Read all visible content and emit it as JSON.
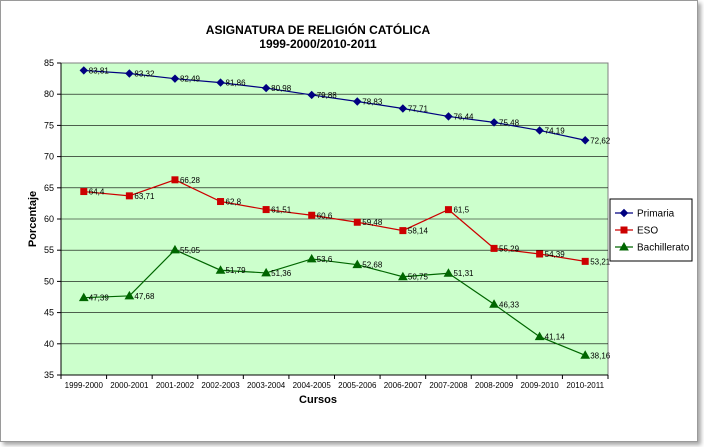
{
  "chart_data": {
    "type": "line",
    "title": "ASIGNATURA DE RELIGIÓN CATÓLICA",
    "subtitle": "1999-2000/2010-2011",
    "xlabel": "Cursos",
    "ylabel": "Porcentaje",
    "ylim": [
      35,
      85
    ],
    "yticks": [
      35,
      40,
      45,
      50,
      55,
      60,
      65,
      70,
      75,
      80,
      85
    ],
    "grid": true,
    "legend_position": "right",
    "plot_background": "#ccffcc",
    "categories": [
      "1999-2000",
      "2000-2001",
      "2001-2002",
      "2002-2003",
      "2003-2004",
      "2004-2005",
      "2005-2006",
      "2006-2007",
      "2007-2008",
      "2008-2009",
      "2009-2010",
      "2010-2011"
    ],
    "series": [
      {
        "name": "Primaria",
        "color": "#000080",
        "marker": "diamond",
        "values": [
          83.81,
          83.32,
          82.49,
          81.86,
          80.98,
          79.88,
          78.83,
          77.71,
          76.44,
          75.48,
          74.19,
          72.62
        ],
        "labels": [
          "83,81",
          "83,32",
          "82,49",
          "81,86",
          "80,98",
          "79,88",
          "78,83",
          "77,71",
          "76,44",
          "75,48",
          "74,19",
          "72,62"
        ]
      },
      {
        "name": "ESO",
        "color": "#cc0000",
        "marker": "square",
        "values": [
          64.4,
          63.71,
          66.28,
          62.8,
          61.51,
          60.6,
          59.48,
          58.14,
          61.5,
          55.29,
          54.39,
          53.21
        ],
        "labels": [
          "64,4",
          "63,71",
          "66,28",
          "62,8",
          "61,51",
          "60,6",
          "59,48",
          "58,14",
          "61,5",
          "55,29",
          "54,39",
          "53,21"
        ]
      },
      {
        "name": "Bachillerato",
        "color": "#006600",
        "marker": "triangle",
        "values": [
          47.39,
          47.68,
          55.05,
          51.79,
          51.36,
          53.6,
          52.68,
          50.75,
          51.31,
          46.33,
          41.14,
          38.16
        ],
        "labels": [
          "47,39",
          "47,68",
          "55,05",
          "51,79",
          "51,36",
          "53,6",
          "52,68",
          "50,75",
          "51,31",
          "46,33",
          "41,14",
          "38,16"
        ]
      }
    ]
  }
}
